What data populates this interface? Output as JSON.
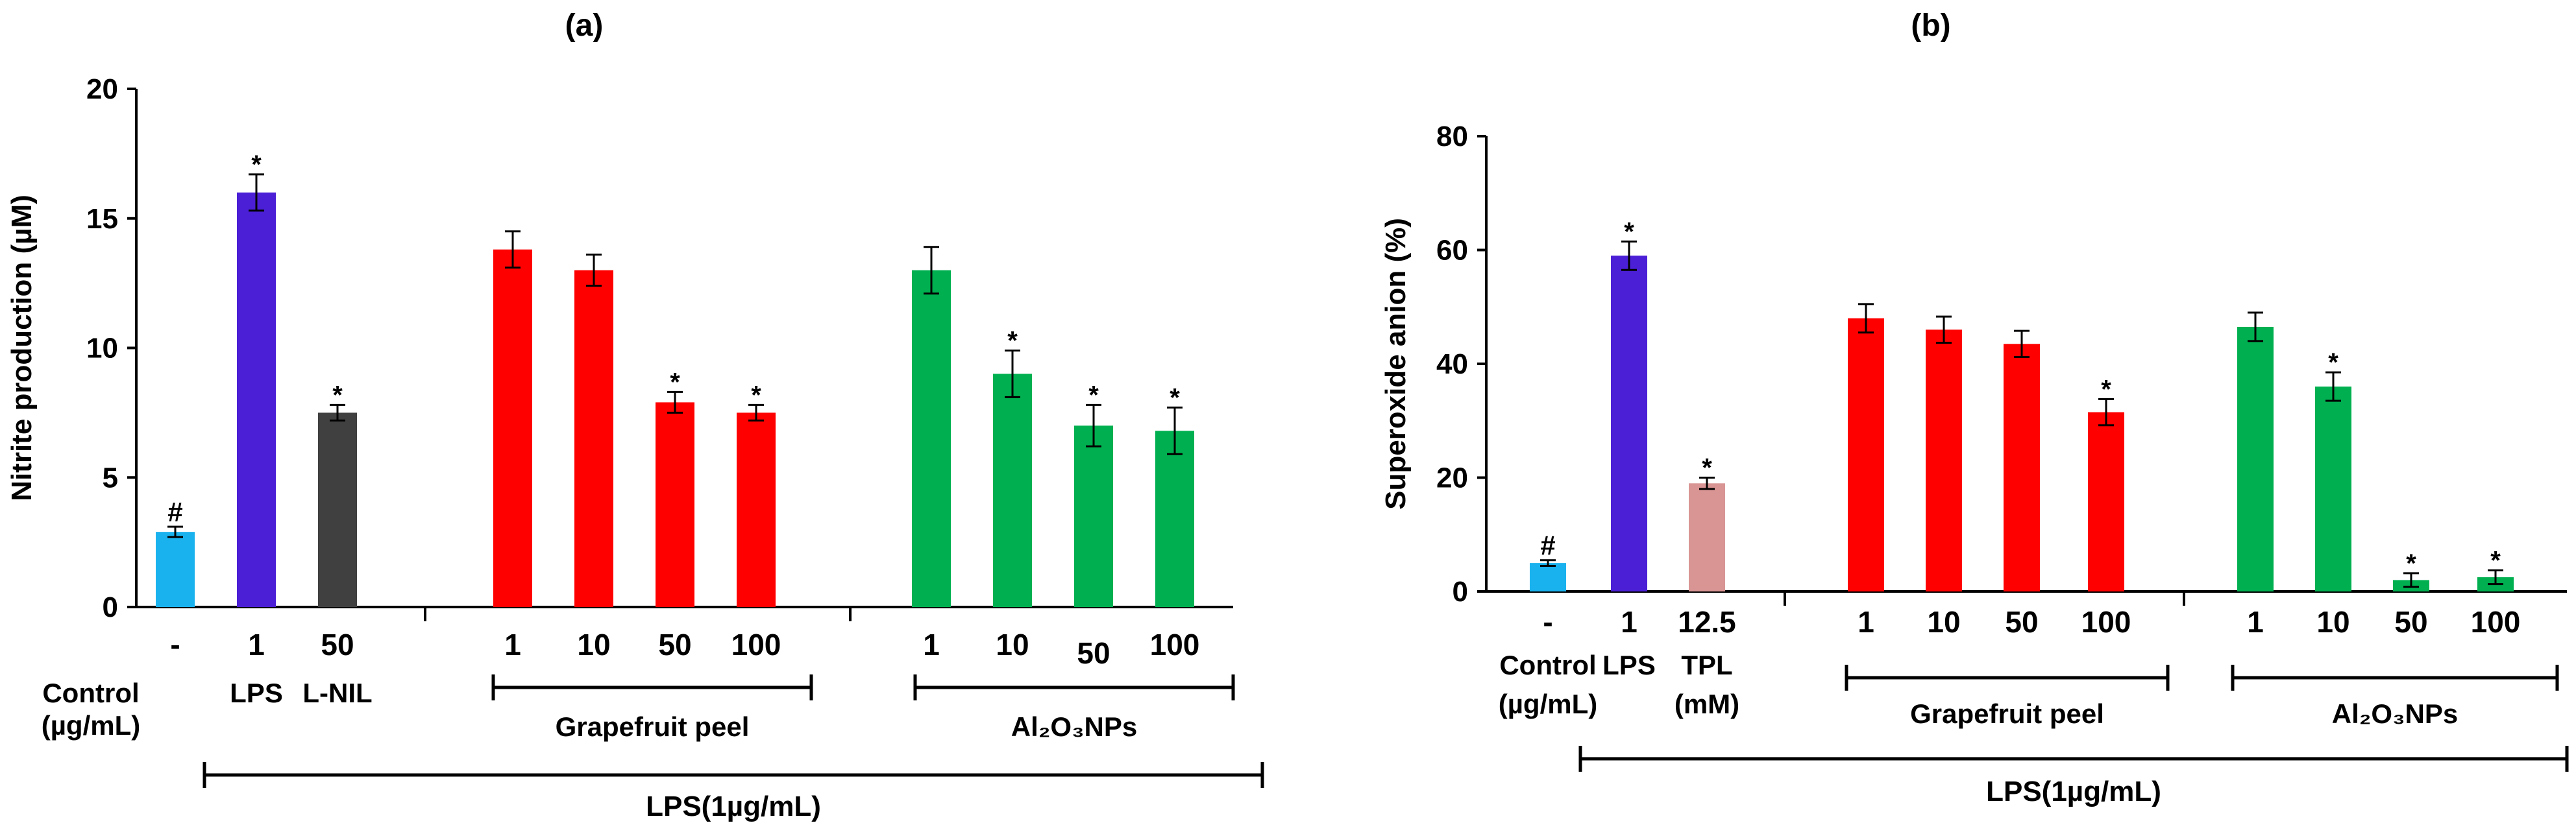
{
  "chart_data": [
    {
      "panel": "(a)",
      "type": "bar",
      "ylabel": "Nitrite production (µM)",
      "ylim": [
        0,
        20
      ],
      "yticks": [
        "0",
        "5",
        "10",
        "15",
        "20"
      ],
      "control_label": [
        "Control",
        "(µg/mL)"
      ],
      "bars": [
        {
          "dose": "-",
          "label": "Control",
          "value": 2.9,
          "error": 0.2,
          "color": "#1ab2ee",
          "mark": "#"
        },
        {
          "dose": "1",
          "label": "LPS",
          "value": 16.0,
          "error": 0.7,
          "color": "#4b1fd6",
          "mark": "*"
        },
        {
          "dose": "50",
          "label": "L-NIL",
          "value": 7.5,
          "error": 0.3,
          "color": "#404040",
          "mark": "*"
        },
        {
          "dose": "1",
          "group": "Grapefruit peel",
          "value": 13.8,
          "error": 0.7,
          "color": "#ff0000",
          "mark": ""
        },
        {
          "dose": "10",
          "group": "Grapefruit peel",
          "value": 13.0,
          "error": 0.6,
          "color": "#ff0000",
          "mark": ""
        },
        {
          "dose": "50",
          "group": "Grapefruit peel",
          "value": 7.9,
          "error": 0.4,
          "color": "#ff0000",
          "mark": "*"
        },
        {
          "dose": "100",
          "group": "Grapefruit peel",
          "value": 7.5,
          "error": 0.3,
          "color": "#ff0000",
          "mark": "*"
        },
        {
          "dose": "1",
          "group": "Al₂O₃NPs",
          "value": 13.0,
          "error": 0.9,
          "color": "#00b050",
          "mark": ""
        },
        {
          "dose": "10",
          "group": "Al₂O₃NPs",
          "value": 9.0,
          "error": 0.9,
          "color": "#00b050",
          "mark": "*"
        },
        {
          "dose": "50",
          "group": "Al₂O₃NPs",
          "value": 7.0,
          "error": 0.8,
          "color": "#00b050",
          "mark": "*"
        },
        {
          "dose": "100",
          "group": "Al₂O₃NPs",
          "value": 6.8,
          "error": 0.9,
          "color": "#00b050",
          "mark": "*"
        }
      ],
      "groups": [
        "Grapefruit peel",
        "Al₂O₃NPs"
      ],
      "span_label": "LPS(1µg/mL)"
    },
    {
      "panel": "(b)",
      "type": "bar",
      "ylabel": "Superoxide anion (%)",
      "ylim": [
        0,
        80
      ],
      "yticks": [
        "0",
        "20",
        "40",
        "60",
        "80"
      ],
      "control_label": [
        "Control",
        "(µg/mL)"
      ],
      "bars": [
        {
          "dose": "-",
          "label": "Control",
          "value": 5.0,
          "error": 0.5,
          "color": "#1ab2ee",
          "mark": "#"
        },
        {
          "dose": "1",
          "label": "LPS",
          "value": 59.0,
          "error": 2.5,
          "color": "#4b1fd6",
          "mark": "*"
        },
        {
          "dose": "12.5",
          "label": "TPL",
          "sublabel": "(mM)",
          "value": 19.0,
          "error": 1.0,
          "color": "#d99594",
          "mark": "*"
        },
        {
          "dose": "1",
          "group": "Grapefruit peel",
          "value": 48.0,
          "error": 2.5,
          "color": "#ff0000",
          "mark": ""
        },
        {
          "dose": "10",
          "group": "Grapefruit peel",
          "value": 46.0,
          "error": 2.3,
          "color": "#ff0000",
          "mark": ""
        },
        {
          "dose": "50",
          "group": "Grapefruit peel",
          "value": 43.5,
          "error": 2.3,
          "color": "#ff0000",
          "mark": ""
        },
        {
          "dose": "100",
          "group": "Grapefruit peel",
          "value": 31.5,
          "error": 2.3,
          "color": "#ff0000",
          "mark": "*"
        },
        {
          "dose": "1",
          "group": "Al₂O₃NPs",
          "value": 46.5,
          "error": 2.5,
          "color": "#00b050",
          "mark": ""
        },
        {
          "dose": "10",
          "group": "Al₂O₃NPs",
          "value": 36.0,
          "error": 2.5,
          "color": "#00b050",
          "mark": "*"
        },
        {
          "dose": "50",
          "group": "Al₂O₃NPs",
          "value": 2.0,
          "error": 1.2,
          "color": "#00b050",
          "mark": "*"
        },
        {
          "dose": "100",
          "group": "Al₂O₃NPs",
          "value": 2.5,
          "error": 1.2,
          "color": "#00b050",
          "mark": "*"
        }
      ],
      "groups": [
        "Grapefruit peel",
        "Al₂O₃NPs"
      ],
      "span_label": "LPS(1µg/mL)"
    }
  ]
}
